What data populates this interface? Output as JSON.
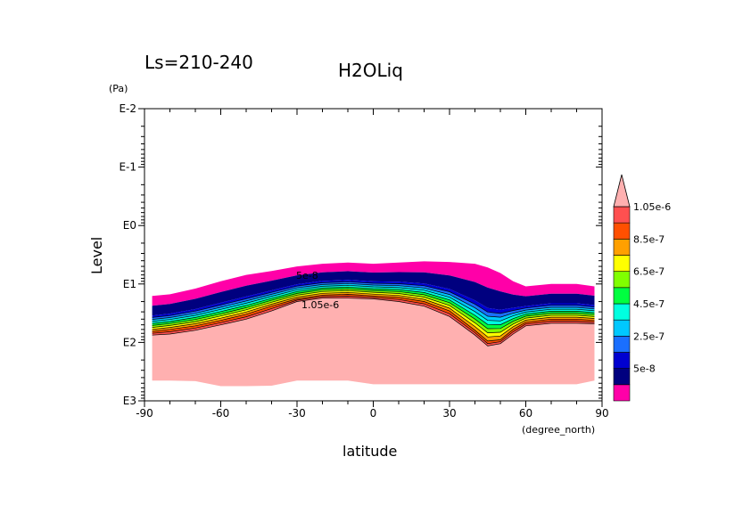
{
  "chart_data": {
    "type": "heatmap",
    "title_left": "Ls=210-240",
    "title": "H2OLiq",
    "xlabel": "latitude",
    "xunits": "(degree_north)",
    "ylabel": "Level",
    "yunits": "(Pa)",
    "x_ticks": [
      "-90",
      "-60",
      "-30",
      "0",
      "30",
      "60",
      "90"
    ],
    "x_tick_values": [
      -90,
      -60,
      -30,
      0,
      30,
      60,
      90
    ],
    "y_ticks": [
      "E-2",
      "E-1",
      "E0",
      "E1",
      "E2",
      "E3"
    ],
    "y_tick_exponents": [
      -2,
      -1,
      0,
      1,
      2,
      3
    ],
    "xlim": [
      -90,
      90
    ],
    "ylim_pa": [
      0.01,
      1000
    ],
    "y_scale": "log",
    "y_inverted": true,
    "colorbar": {
      "labels": [
        "1.05e-6",
        "8.5e-7",
        "6.5e-7",
        "4.5e-7",
        "2.5e-7",
        "5e-8"
      ],
      "level_values": [
        5e-08,
        1.5e-07,
        2.5e-07,
        3.5e-07,
        4.5e-07,
        5.5e-07,
        6.5e-07,
        7.5e-07,
        8.5e-07,
        9.5e-07,
        1.05e-06
      ],
      "colors": [
        "#ff00a8",
        "#00007f",
        "#0000d0",
        "#1a6fff",
        "#00c8ff",
        "#00ffe0",
        "#00ff40",
        "#80ff00",
        "#ffff00",
        "#ffa000",
        "#ff5000",
        "#ff5050"
      ],
      "extend_max_color": "#ffb0b0"
    },
    "contour_labels": [
      "5e-8",
      "1.05e-6"
    ],
    "field": {
      "latitudes": [
        -87,
        -80,
        -70,
        -60,
        -50,
        -40,
        -30,
        -20,
        -10,
        0,
        10,
        20,
        30,
        40,
        45,
        50,
        55,
        60,
        70,
        80,
        87
      ],
      "cloud_top_pa": [
        16,
        15,
        12,
        9,
        7,
        6,
        5,
        4.5,
        4.3,
        4.5,
        4.3,
        4.1,
        4.2,
        4.5,
        5.2,
        6.5,
        9,
        11,
        10,
        10,
        11
      ],
      "cloud_base_pa": [
        65,
        60,
        52,
        42,
        33,
        24,
        18,
        15.5,
        15,
        16,
        17,
        20,
        29,
        62,
        95,
        90,
        60,
        45,
        40,
        40,
        42
      ],
      "max_contour_pa": [
        75,
        72,
        62,
        50,
        40,
        29,
        20,
        17.5,
        17.5,
        18,
        20,
        24,
        36,
        75,
        115,
        105,
        72,
        52,
        47,
        47,
        48
      ],
      "surface_pa": [
        450,
        450,
        460,
        560,
        560,
        550,
        450,
        450,
        450,
        520,
        520,
        520,
        520,
        520,
        520,
        520,
        520,
        520,
        520,
        520,
        450
      ]
    }
  }
}
